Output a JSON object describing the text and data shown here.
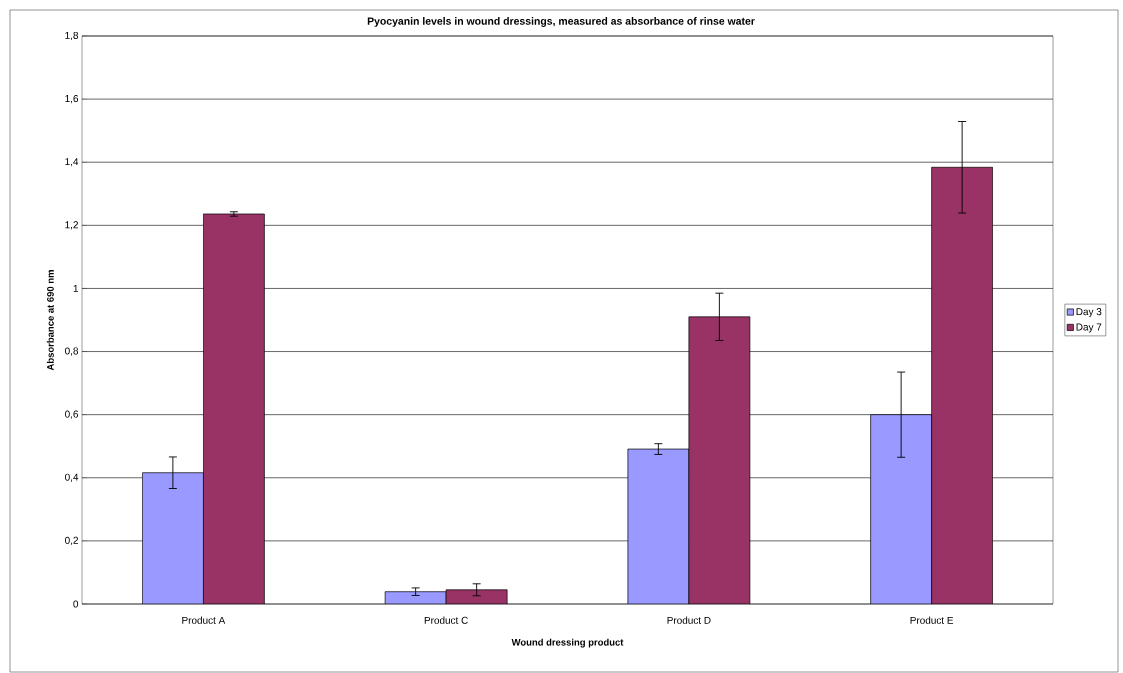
{
  "chart_data": {
    "type": "bar",
    "title": "Pyocyanin levels in wound dressings, measured as absorbance of rinse water",
    "xlabel": "Wound dressing product",
    "ylabel": "Absorbance at 690 nm",
    "categories": [
      "Product A",
      "Product C",
      "Product D",
      "Product E"
    ],
    "series": [
      {
        "name": "Day 3",
        "color": "#9999ff",
        "values": [
          0.416,
          0.039,
          0.491,
          0.6
        ],
        "errors": [
          0.05,
          0.012,
          0.017,
          0.135
        ]
      },
      {
        "name": "Day 7",
        "color": "#993366",
        "values": [
          1.236,
          0.045,
          0.91,
          1.384
        ],
        "errors": [
          0.007,
          0.019,
          0.075,
          0.145
        ]
      }
    ],
    "ylim": [
      0,
      1.8
    ],
    "yticks": [
      0,
      {
        "value": 0.2,
        "label": "0,2"
      },
      {
        "value": 0.4,
        "label": "0,4"
      },
      {
        "value": 0.6,
        "label": "0,6"
      },
      {
        "value": 0.8,
        "label": "0,8"
      },
      1,
      {
        "value": 1.2,
        "label": "1,2"
      },
      {
        "value": 1.4,
        "label": "1,4"
      },
      {
        "value": 1.6,
        "label": "1,6"
      },
      {
        "value": 1.8,
        "label": "1,8"
      }
    ],
    "grid": "y",
    "legend": "right"
  }
}
